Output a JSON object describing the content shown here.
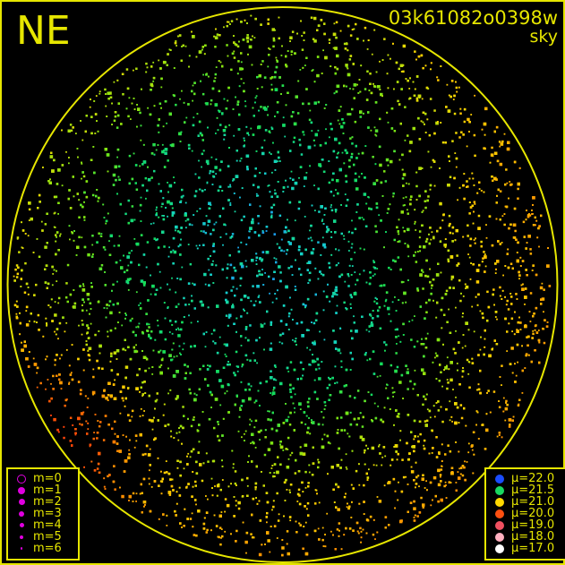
{
  "header": {
    "direction": "NE",
    "image_id": "03k61082o0398w",
    "mode": "sky"
  },
  "colors": {
    "frame": "#e6e600",
    "background": "#000000"
  },
  "magnitude_legend": [
    {
      "label": "m=0",
      "style": "ring"
    },
    {
      "label": "m=1"
    },
    {
      "label": "m=2"
    },
    {
      "label": "m=3"
    },
    {
      "label": "m=4"
    },
    {
      "label": "m=5"
    },
    {
      "label": "m=6"
    }
  ],
  "magnitude_color": "#e000e0",
  "brightness_legend": [
    {
      "label": "μ=22.0",
      "color": "#1a4cff"
    },
    {
      "label": "μ=21.5",
      "color": "#19d860"
    },
    {
      "label": "μ=21.0",
      "color": "#ffd800"
    },
    {
      "label": "μ=20.0",
      "color": "#ff5010"
    },
    {
      "label": "μ=19.0",
      "color": "#f05060"
    },
    {
      "label": "μ=18.0",
      "color": "#ffb0c0"
    },
    {
      "label": "μ=17.0",
      "color": "#ffffff"
    }
  ]
}
